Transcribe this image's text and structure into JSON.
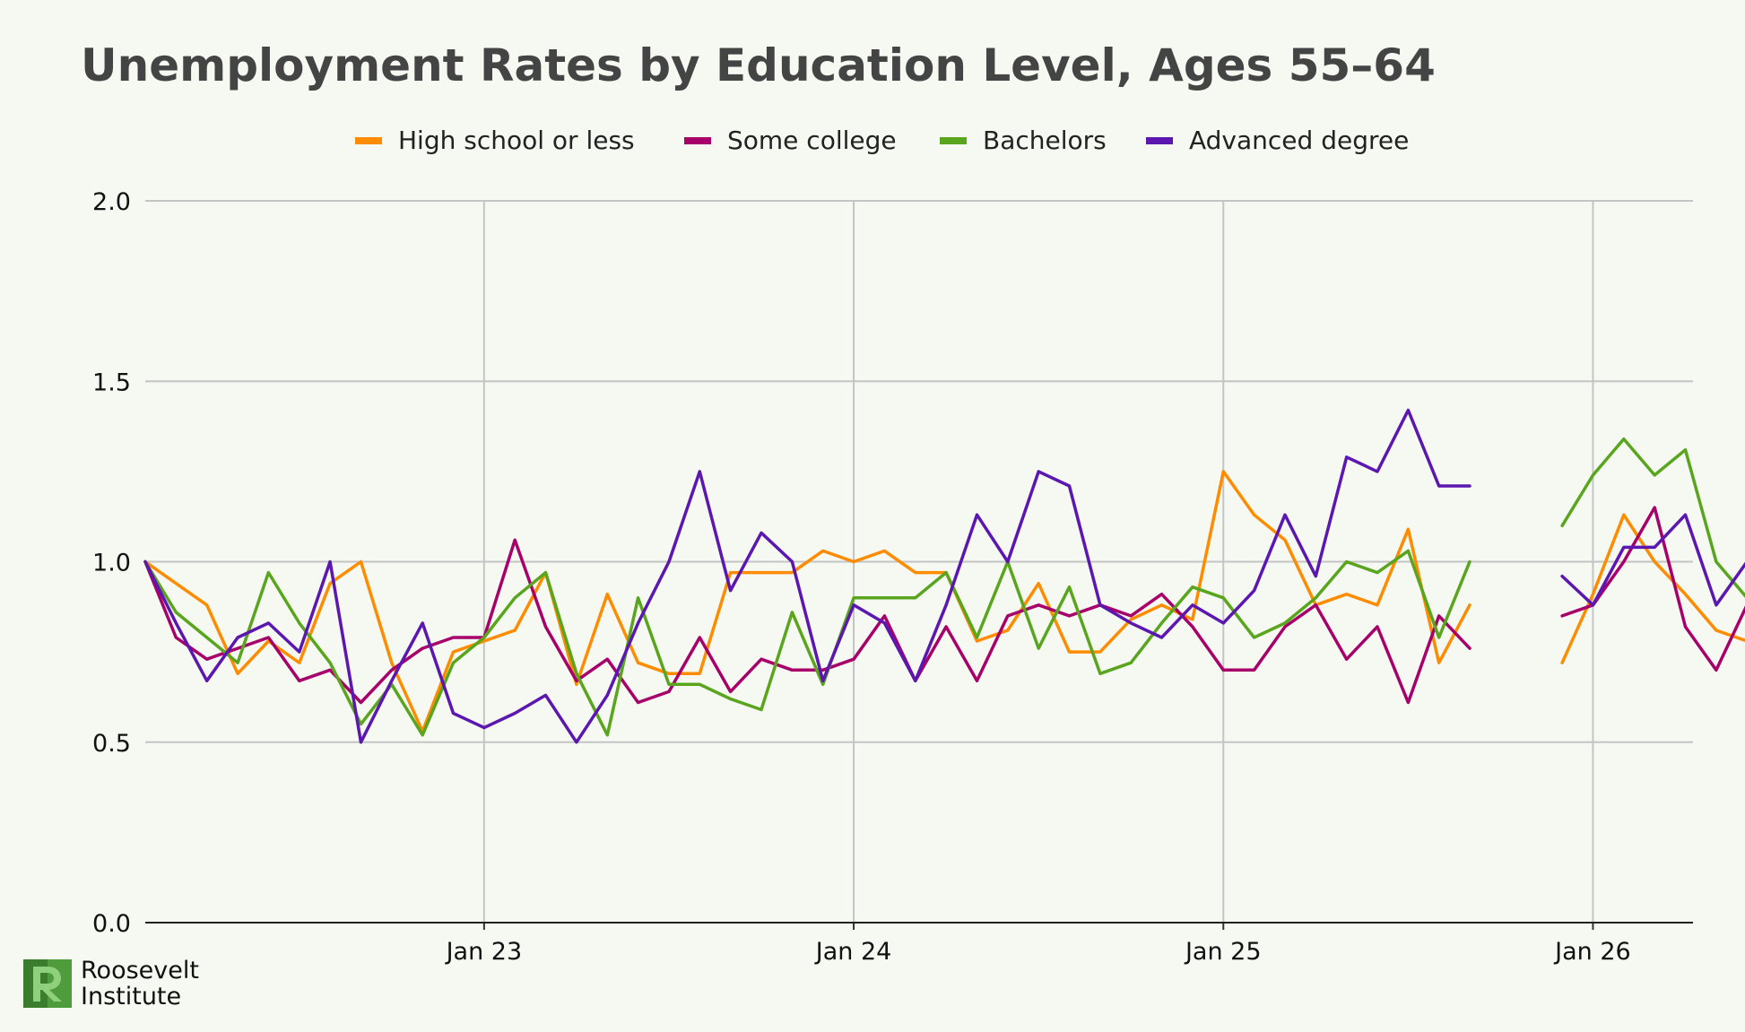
{
  "chart_data": {
    "type": "line",
    "title": "Unemployment Rates by Education Level, Ages 55–64",
    "xlabel": "",
    "ylabel": "",
    "ylim": [
      0,
      2
    ],
    "yticks": [
      "0.0",
      "0.5",
      "1.0",
      "1.5",
      "2.0"
    ],
    "xticks": [
      "Jan 23",
      "Jan 24",
      "Jan 25",
      "Jan 26"
    ],
    "x_start": "Feb 22",
    "x_end": "Apr 26",
    "grid": true,
    "legend_position": "top",
    "series": [
      {
        "name": "High school or less",
        "color": "#ff8c00",
        "values": [
          1.0,
          0.94,
          0.88,
          0.69,
          0.78,
          0.72,
          0.94,
          1.0,
          0.72,
          0.53,
          0.75,
          0.78,
          0.81,
          0.97,
          0.66,
          0.91,
          0.72,
          0.69,
          0.69,
          0.97,
          0.97,
          0.97,
          1.03,
          1.0,
          1.03,
          0.97,
          0.97,
          0.78,
          0.81,
          0.94,
          0.75,
          0.75,
          0.84,
          0.88,
          0.84,
          1.25,
          1.13,
          1.06,
          0.88,
          0.91,
          0.88,
          1.09,
          0.72,
          0.88,
          null,
          null,
          0.72,
          0.91,
          1.13,
          1.0,
          0.91,
          0.81,
          0.78
        ]
      },
      {
        "name": "Some college",
        "color": "#a8006a",
        "values": [
          1.0,
          0.79,
          0.73,
          0.76,
          0.79,
          0.67,
          0.7,
          0.61,
          0.7,
          0.76,
          0.79,
          0.79,
          1.06,
          0.82,
          0.67,
          0.73,
          0.61,
          0.64,
          0.79,
          0.64,
          0.73,
          0.7,
          0.7,
          0.73,
          0.85,
          0.67,
          0.82,
          0.67,
          0.85,
          0.88,
          0.85,
          0.88,
          0.85,
          0.91,
          0.82,
          0.7,
          0.7,
          0.82,
          0.88,
          0.73,
          0.82,
          0.61,
          0.85,
          0.76,
          null,
          null,
          0.85,
          0.88,
          1.0,
          1.15,
          0.82,
          0.7,
          0.88
        ]
      },
      {
        "name": "Bachelors",
        "color": "#5aa51e",
        "values": [
          1.0,
          0.86,
          0.79,
          0.72,
          0.97,
          0.83,
          0.72,
          0.55,
          0.66,
          0.52,
          0.72,
          0.79,
          0.9,
          0.97,
          0.69,
          0.52,
          0.9,
          0.66,
          0.66,
          0.62,
          0.59,
          0.86,
          0.66,
          0.9,
          0.9,
          0.9,
          0.97,
          0.79,
          1.0,
          0.76,
          0.93,
          0.69,
          0.72,
          0.83,
          0.93,
          0.9,
          0.79,
          0.83,
          0.9,
          1.0,
          0.97,
          1.03,
          0.79,
          1.0,
          null,
          null,
          1.1,
          1.24,
          1.34,
          1.24,
          1.31,
          1.0,
          0.9
        ]
      },
      {
        "name": "Advanced degree",
        "color": "#5b17b0",
        "values": [
          1.0,
          0.83,
          0.67,
          0.79,
          0.83,
          0.75,
          1.0,
          0.5,
          0.67,
          0.83,
          0.58,
          0.54,
          0.58,
          0.63,
          0.5,
          0.63,
          0.83,
          1.0,
          1.25,
          0.92,
          1.08,
          1.0,
          0.67,
          0.88,
          0.83,
          0.67,
          0.88,
          1.13,
          1.0,
          1.25,
          1.21,
          0.88,
          0.83,
          0.79,
          0.88,
          0.83,
          0.92,
          1.13,
          0.96,
          1.29,
          1.25,
          1.42,
          1.21,
          1.21,
          null,
          null,
          0.96,
          0.88,
          1.04,
          1.04,
          1.13,
          0.88,
          1.0
        ]
      }
    ]
  },
  "branding": {
    "line1": "Roosevelt",
    "line2": "Institute",
    "logo_color": "#4f9c3c"
  }
}
